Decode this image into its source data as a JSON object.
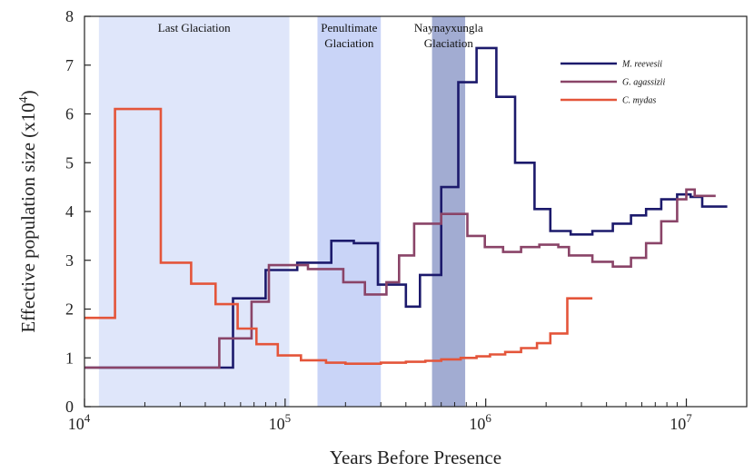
{
  "chart_data": {
    "type": "line",
    "xscale": "log",
    "xlim": [
      10000,
      20000000
    ],
    "ylim": [
      0,
      8
    ],
    "xlabel": "Years Before Presence",
    "ylabel": "Effective population size (x10",
    "ylabel_exp": "4",
    "ylabel_close": ")",
    "ylabel_full": "Effective population size (x10^4)",
    "x_ticks": [
      {
        "value": 10000,
        "base": "10",
        "exp": "4"
      },
      {
        "value": 100000,
        "base": "10",
        "exp": "5"
      },
      {
        "value": 1000000,
        "base": "10",
        "exp": "6"
      },
      {
        "value": 10000000,
        "base": "10",
        "exp": "7"
      }
    ],
    "y_ticks": [
      0,
      1,
      2,
      3,
      4,
      5,
      6,
      7,
      8
    ],
    "y_tick_labels": [
      "0",
      "1",
      "2",
      "3",
      "4",
      "5",
      "6",
      "7",
      "8"
    ],
    "regions": [
      {
        "name": "last-glaciation",
        "lines": [
          "Last Glaciation"
        ],
        "x0": 11800,
        "x1": 105000,
        "color": "#dfe6fa"
      },
      {
        "name": "penultimate-glaciation",
        "lines": [
          "Penultimate",
          "Glaciation"
        ],
        "x0": 145000,
        "x1": 300000,
        "color": "#c9d4f7"
      },
      {
        "name": "naynayxungla-glaciation",
        "lines": [
          "Naynayxungla",
          "Glaciation"
        ],
        "x0": 540000,
        "x1": 790000,
        "color": "#a2acd2"
      }
    ],
    "series": [
      {
        "name": "M. reevesii",
        "color": "#1c1a6c",
        "points": [
          [
            10000,
            0.8
          ],
          [
            55000,
            0.8
          ],
          [
            55000,
            2.22
          ],
          [
            80000,
            2.22
          ],
          [
            80000,
            2.8
          ],
          [
            115000,
            2.8
          ],
          [
            115000,
            2.95
          ],
          [
            170000,
            2.95
          ],
          [
            170000,
            3.4
          ],
          [
            220000,
            3.4
          ],
          [
            220000,
            3.35
          ],
          [
            290000,
            3.35
          ],
          [
            290000,
            2.5
          ],
          [
            400000,
            2.5
          ],
          [
            400000,
            2.05
          ],
          [
            470000,
            2.05
          ],
          [
            470000,
            2.7
          ],
          [
            600000,
            2.7
          ],
          [
            600000,
            4.5
          ],
          [
            730000,
            4.5
          ],
          [
            730000,
            6.65
          ],
          [
            900000,
            6.65
          ],
          [
            900000,
            7.35
          ],
          [
            1130000,
            7.35
          ],
          [
            1130000,
            6.35
          ],
          [
            1400000,
            6.35
          ],
          [
            1400000,
            5.0
          ],
          [
            1750000,
            5.0
          ],
          [
            1750000,
            4.05
          ],
          [
            2100000,
            4.05
          ],
          [
            2100000,
            3.6
          ],
          [
            2650000,
            3.6
          ],
          [
            2650000,
            3.53
          ],
          [
            3400000,
            3.53
          ],
          [
            3400000,
            3.6
          ],
          [
            4300000,
            3.6
          ],
          [
            4300000,
            3.75
          ],
          [
            5300000,
            3.75
          ],
          [
            5300000,
            3.92
          ],
          [
            6300000,
            3.92
          ],
          [
            6300000,
            4.05
          ],
          [
            7500000,
            4.05
          ],
          [
            7500000,
            4.25
          ],
          [
            9000000,
            4.25
          ],
          [
            9000000,
            4.35
          ],
          [
            10500000,
            4.35
          ],
          [
            10500000,
            4.3
          ],
          [
            12000000,
            4.3
          ],
          [
            12000000,
            4.1
          ],
          [
            16000000,
            4.1
          ]
        ]
      },
      {
        "name": "G. agassizii",
        "color": "#8a4468",
        "points": [
          [
            10000,
            0.8
          ],
          [
            47000,
            0.8
          ],
          [
            47000,
            1.4
          ],
          [
            68000,
            1.4
          ],
          [
            68000,
            2.15
          ],
          [
            83000,
            2.15
          ],
          [
            83000,
            2.9
          ],
          [
            130000,
            2.9
          ],
          [
            130000,
            2.82
          ],
          [
            195000,
            2.82
          ],
          [
            195000,
            2.55
          ],
          [
            250000,
            2.55
          ],
          [
            250000,
            2.3
          ],
          [
            320000,
            2.3
          ],
          [
            320000,
            2.55
          ],
          [
            370000,
            2.55
          ],
          [
            370000,
            3.1
          ],
          [
            440000,
            3.1
          ],
          [
            440000,
            3.75
          ],
          [
            600000,
            3.75
          ],
          [
            600000,
            3.95
          ],
          [
            810000,
            3.95
          ],
          [
            810000,
            3.5
          ],
          [
            990000,
            3.5
          ],
          [
            990000,
            3.27
          ],
          [
            1220000,
            3.27
          ],
          [
            1220000,
            3.17
          ],
          [
            1500000,
            3.17
          ],
          [
            1500000,
            3.27
          ],
          [
            1850000,
            3.27
          ],
          [
            1850000,
            3.32
          ],
          [
            2300000,
            3.32
          ],
          [
            2300000,
            3.27
          ],
          [
            2600000,
            3.27
          ],
          [
            2600000,
            3.1
          ],
          [
            3400000,
            3.1
          ],
          [
            3400000,
            2.97
          ],
          [
            4300000,
            2.97
          ],
          [
            4300000,
            2.87
          ],
          [
            5300000,
            2.87
          ],
          [
            5300000,
            3.05
          ],
          [
            6300000,
            3.05
          ],
          [
            6300000,
            3.35
          ],
          [
            7500000,
            3.35
          ],
          [
            7500000,
            3.8
          ],
          [
            9000000,
            3.8
          ],
          [
            9000000,
            4.25
          ],
          [
            10000000,
            4.25
          ],
          [
            10000000,
            4.45
          ],
          [
            11000000,
            4.45
          ],
          [
            11000000,
            4.32
          ],
          [
            14000000,
            4.32
          ]
        ]
      },
      {
        "name": "C. mydas",
        "color": "#e4553a",
        "points": [
          [
            10000,
            1.82
          ],
          [
            14200,
            1.82
          ],
          [
            14200,
            6.1
          ],
          [
            24000,
            6.1
          ],
          [
            24000,
            2.95
          ],
          [
            34000,
            2.95
          ],
          [
            34000,
            2.52
          ],
          [
            45000,
            2.52
          ],
          [
            45000,
            2.1
          ],
          [
            58000,
            2.1
          ],
          [
            58000,
            1.6
          ],
          [
            72000,
            1.6
          ],
          [
            72000,
            1.28
          ],
          [
            92000,
            1.28
          ],
          [
            92000,
            1.05
          ],
          [
            120000,
            1.05
          ],
          [
            120000,
            0.95
          ],
          [
            160000,
            0.95
          ],
          [
            160000,
            0.9
          ],
          [
            200000,
            0.9
          ],
          [
            200000,
            0.88
          ],
          [
            300000,
            0.88
          ],
          [
            300000,
            0.9
          ],
          [
            400000,
            0.9
          ],
          [
            400000,
            0.92
          ],
          [
            500000,
            0.92
          ],
          [
            500000,
            0.94
          ],
          [
            600000,
            0.94
          ],
          [
            600000,
            0.97
          ],
          [
            750000,
            0.97
          ],
          [
            750000,
            1.0
          ],
          [
            900000,
            1.0
          ],
          [
            900000,
            1.03
          ],
          [
            1050000,
            1.03
          ],
          [
            1050000,
            1.07
          ],
          [
            1250000,
            1.07
          ],
          [
            1250000,
            1.12
          ],
          [
            1500000,
            1.12
          ],
          [
            1500000,
            1.2
          ],
          [
            1800000,
            1.2
          ],
          [
            1800000,
            1.3
          ],
          [
            2100000,
            1.3
          ],
          [
            2100000,
            1.5
          ],
          [
            2550000,
            1.5
          ],
          [
            2550000,
            2.22
          ],
          [
            3400000,
            2.22
          ]
        ]
      }
    ],
    "legend": {
      "position": "top-right"
    }
  }
}
